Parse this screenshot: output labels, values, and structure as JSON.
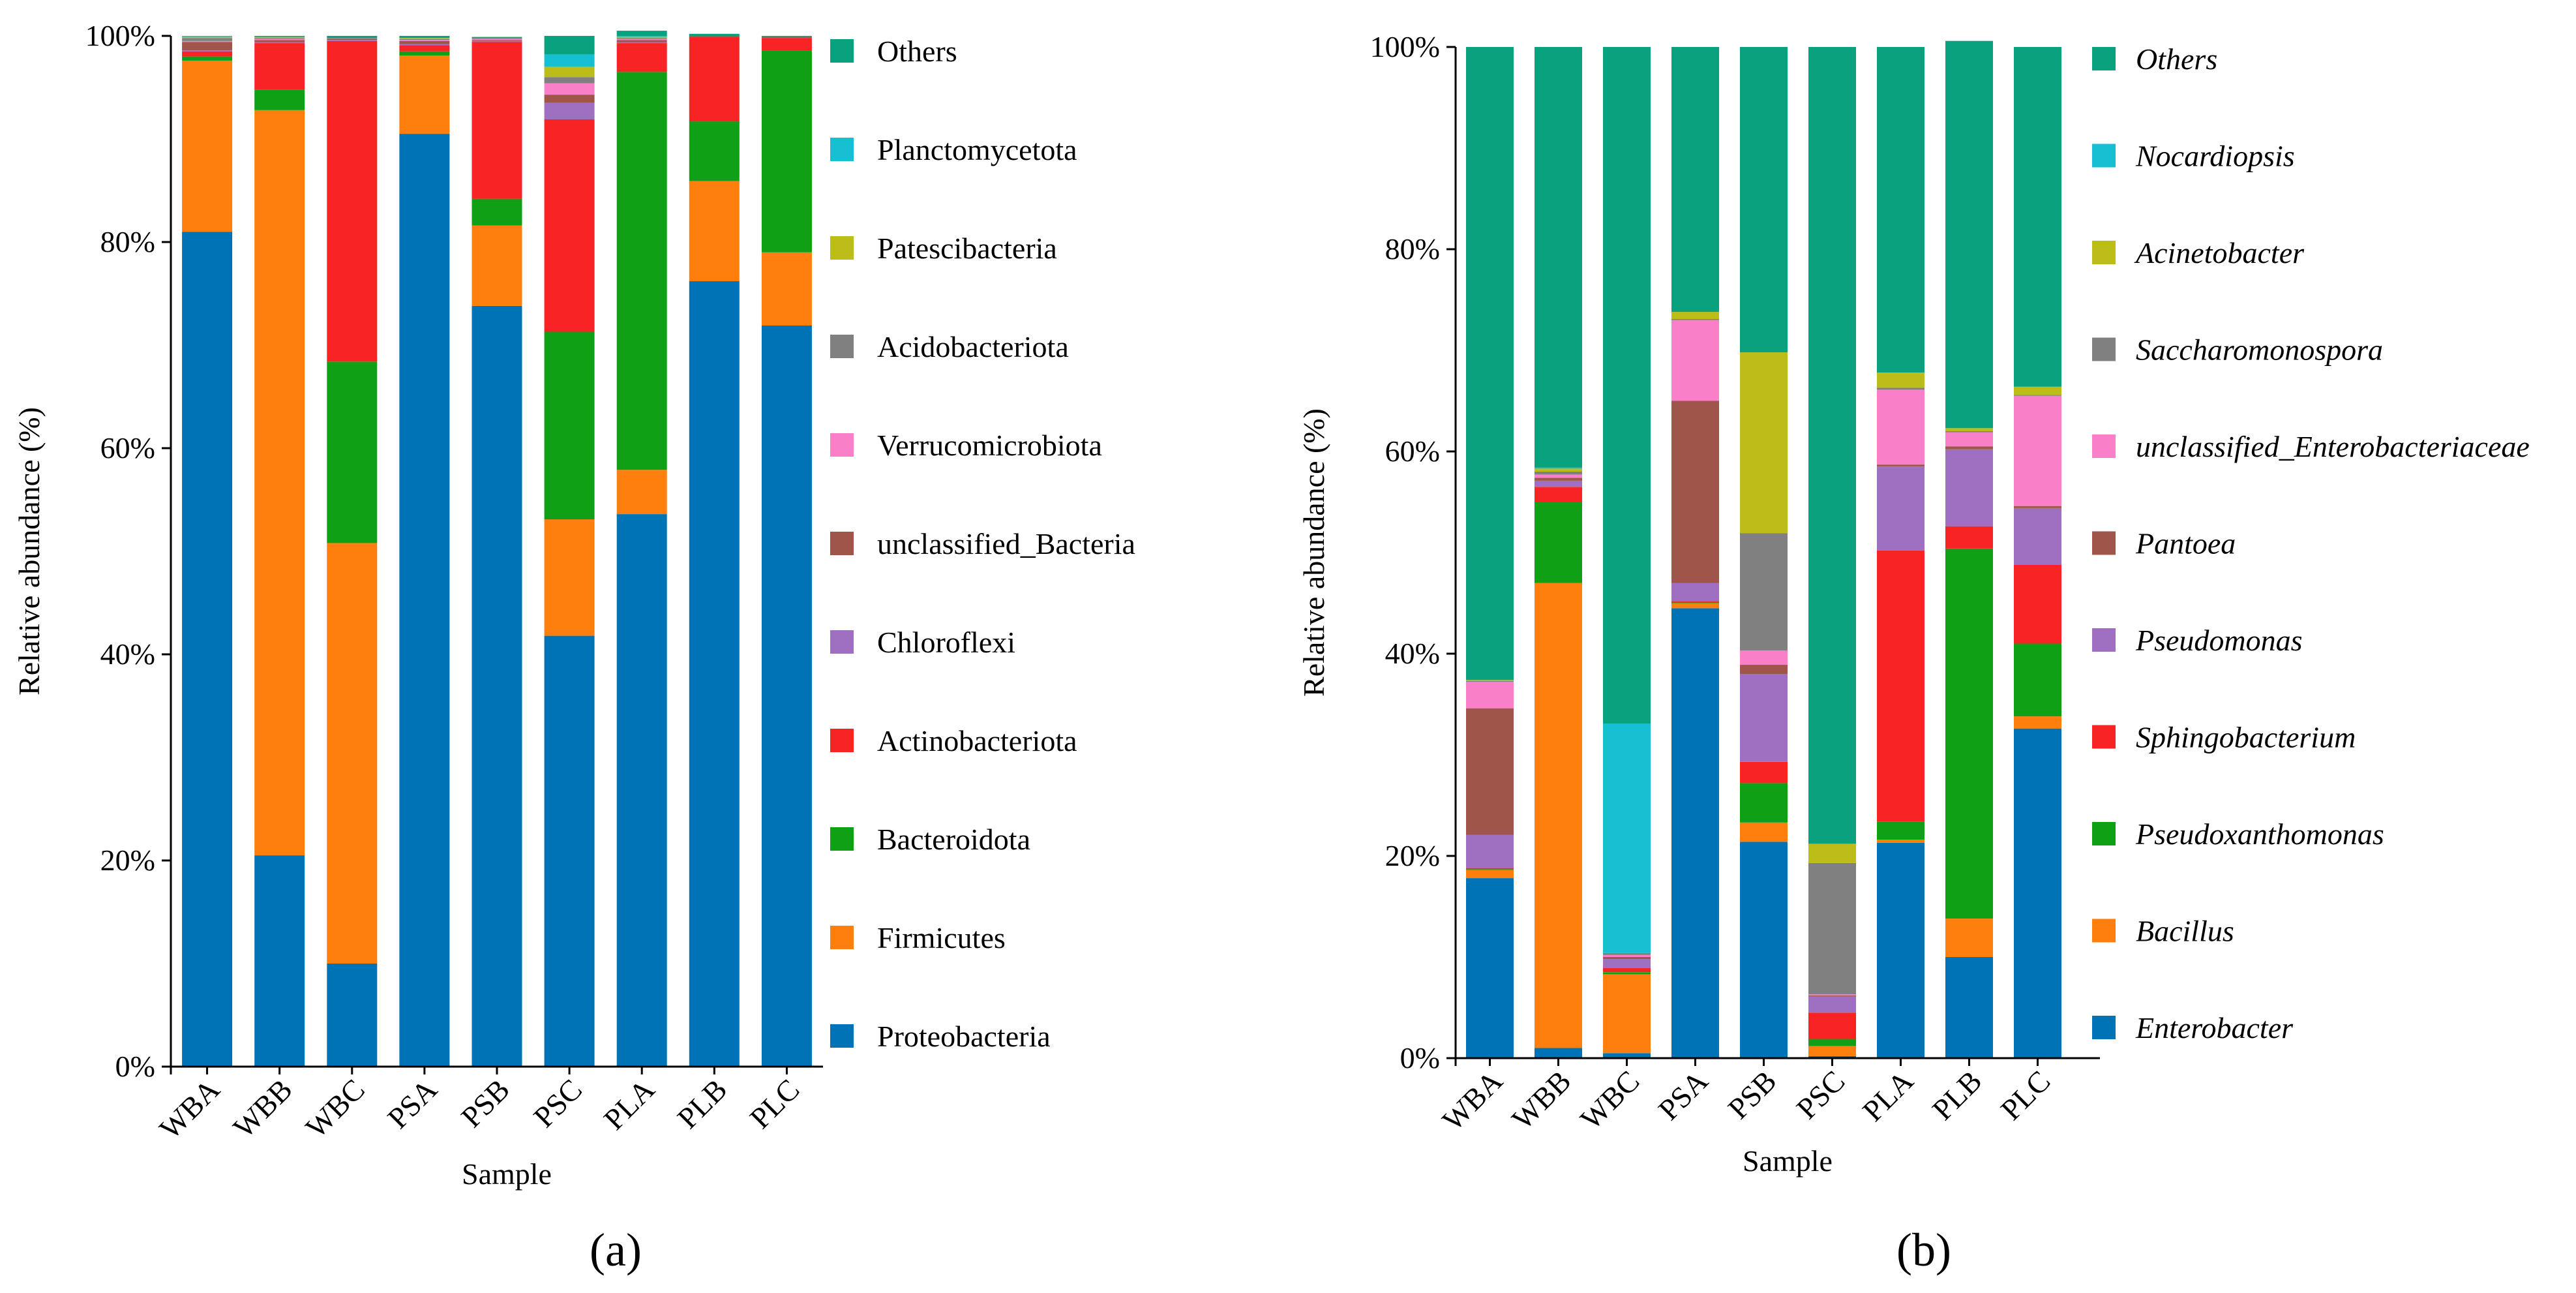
{
  "chart_data": [
    {
      "type": "stacked-bar",
      "panel_label": "(a)",
      "xlabel": "Sample",
      "ylabel": "Relative abundance (%)",
      "ylim": [
        0,
        100
      ],
      "yticks": [
        "0%",
        "20%",
        "40%",
        "60%",
        "80%",
        "100%"
      ],
      "categories": [
        "WBA",
        "WBB",
        "WBC",
        "PSA",
        "PSB",
        "PSC",
        "PLA",
        "PLB",
        "PLC"
      ],
      "legend_italic": false,
      "series": [
        {
          "name": "Proteobacteria",
          "color": "#0073b6",
          "values": [
            81.0,
            20.5,
            10.0,
            90.5,
            73.8,
            41.8,
            53.6,
            76.2,
            71.9
          ]
        },
        {
          "name": "Firmicutes",
          "color": "#ff7f0e",
          "values": [
            16.6,
            72.3,
            40.8,
            7.6,
            7.8,
            11.3,
            4.3,
            9.7,
            7.1
          ]
        },
        {
          "name": "Bacteroidota",
          "color": "#0fa015",
          "values": [
            0.4,
            2.0,
            17.6,
            0.4,
            2.6,
            18.2,
            38.6,
            5.8,
            19.6
          ]
        },
        {
          "name": "Actinobacteriota",
          "color": "#f82325",
          "values": [
            0.5,
            4.5,
            31.1,
            0.6,
            15.2,
            20.6,
            2.8,
            8.2,
            1.2
          ]
        },
        {
          "name": "Chloroflexi",
          "color": "#9f6fc2",
          "values": [
            0.1,
            0.1,
            0.1,
            0.1,
            0.1,
            1.6,
            0.1,
            0.0,
            0.0
          ]
        },
        {
          "name": "unclassified_Bacteria",
          "color": "#a0554a",
          "values": [
            0.8,
            0.2,
            0.1,
            0.3,
            0.1,
            0.8,
            0.2,
            0.1,
            0.1
          ]
        },
        {
          "name": "Verrucomicrobiota",
          "color": "#f87fc8",
          "values": [
            0.1,
            0.1,
            0.0,
            0.1,
            0.1,
            1.1,
            0.1,
            0.0,
            0.0
          ]
        },
        {
          "name": "Acidobacteriota",
          "color": "#808080",
          "values": [
            0.3,
            0.1,
            0.1,
            0.1,
            0.1,
            0.6,
            0.1,
            0.0,
            0.0
          ]
        },
        {
          "name": "Patescibacteria",
          "color": "#bdbd1a",
          "values": [
            0.1,
            0.1,
            0.0,
            0.1,
            0.0,
            1.0,
            0.1,
            0.0,
            0.0
          ]
        },
        {
          "name": "Planctomycetota",
          "color": "#16bfd2",
          "values": [
            0.1,
            0.0,
            0.0,
            0.0,
            0.0,
            1.2,
            0.1,
            0.0,
            0.0
          ]
        },
        {
          "name": "Others",
          "color": "#0aa17e",
          "values": [
            0.0,
            0.1,
            0.2,
            0.2,
            0.1,
            1.8,
            0.5,
            0.2,
            0.1
          ]
        }
      ]
    },
    {
      "type": "stacked-bar",
      "panel_label": "(b)",
      "xlabel": "Sample",
      "ylabel": "Relative abundance (%)",
      "ylim": [
        0,
        100
      ],
      "yticks": [
        "0%",
        "20%",
        "40%",
        "60%",
        "80%",
        "100%"
      ],
      "categories": [
        "WBA",
        "WBB",
        "WBC",
        "PSA",
        "PSB",
        "PSC",
        "PLA",
        "PLB",
        "PLC"
      ],
      "legend_italic": true,
      "series": [
        {
          "name": "Enterobacter",
          "color": "#0073b6",
          "values": [
            17.8,
            1.0,
            0.5,
            44.5,
            21.4,
            0.2,
            21.3,
            10.0,
            32.6
          ]
        },
        {
          "name": "Bacillus",
          "color": "#ff7f0e",
          "values": [
            0.8,
            46.0,
            7.8,
            0.5,
            1.9,
            1.0,
            0.3,
            3.8,
            1.2
          ]
        },
        {
          "name": "Pseudoxanthomonas",
          "color": "#0fa015",
          "values": [
            0.1,
            8.0,
            0.2,
            0.1,
            3.9,
            0.7,
            1.8,
            36.6,
            7.2
          ]
        },
        {
          "name": "Sphingobacterium",
          "color": "#f82325",
          "values": [
            0.1,
            1.5,
            0.4,
            0.1,
            2.1,
            2.6,
            26.8,
            2.2,
            7.8
          ]
        },
        {
          "name": "Pseudomonas",
          "color": "#9f6fc2",
          "values": [
            3.3,
            0.6,
            0.9,
            1.8,
            8.7,
            1.6,
            8.3,
            7.6,
            5.6
          ]
        },
        {
          "name": "Pantoea",
          "color": "#a0554a",
          "values": [
            12.5,
            0.3,
            0.2,
            18.0,
            0.9,
            0.1,
            0.2,
            0.3,
            0.2
          ]
        },
        {
          "name": "unclassified_Enterobacteriaceae",
          "color": "#f87fc8",
          "values": [
            2.6,
            0.3,
            0.2,
            8.0,
            1.4,
            0.1,
            7.4,
            1.4,
            10.9
          ]
        },
        {
          "name": "Saccharomonospora",
          "color": "#808080",
          "values": [
            0.1,
            0.3,
            0.2,
            0.1,
            11.6,
            13.0,
            0.2,
            0.1,
            0.1
          ]
        },
        {
          "name": "Acinetobacter",
          "color": "#bdbd1a",
          "values": [
            0.1,
            0.3,
            0.0,
            0.7,
            17.9,
            1.9,
            1.5,
            0.3,
            0.8
          ]
        },
        {
          "name": "Nocardiopsis",
          "color": "#16bfd2",
          "values": [
            0.0,
            0.1,
            22.7,
            0.0,
            0.0,
            0.0,
            0.0,
            0.0,
            0.0
          ]
        },
        {
          "name": "Others",
          "color": "#0aa17e",
          "values": [
            62.6,
            41.6,
            66.9,
            26.2,
            30.2,
            78.8,
            32.2,
            38.3,
            33.6
          ]
        }
      ]
    }
  ]
}
